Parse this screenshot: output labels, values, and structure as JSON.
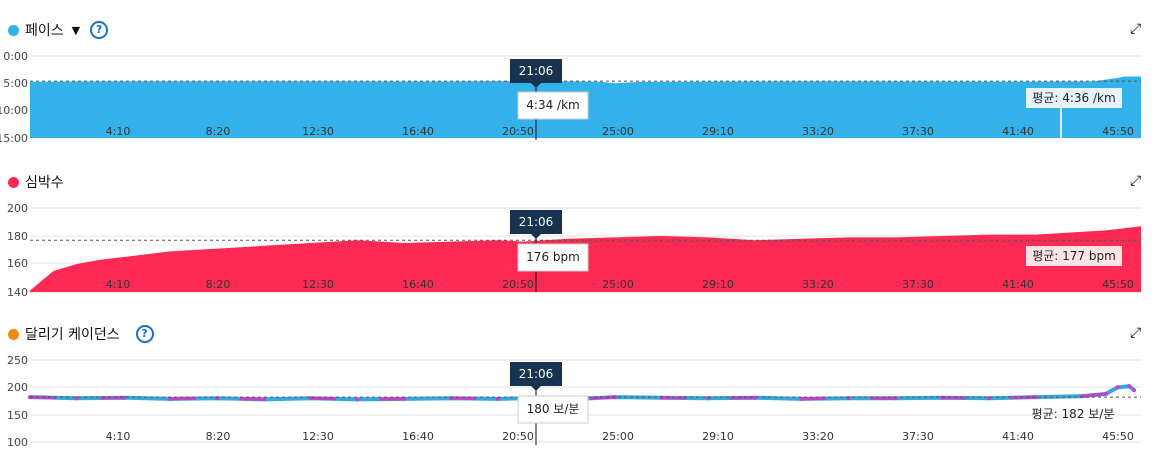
{
  "colors": {
    "pace": "#33b1ea",
    "hr": "#ff2a54",
    "cadence_blue": "#33a9e0",
    "cadence_pink": "#c540c4",
    "cadence_dot": "#ee8a16",
    "cursor_bg": "#17334f"
  },
  "cursor_time": "21:06",
  "x_ticks": [
    "4:10",
    "8:20",
    "12:30",
    "16:40",
    "20:50",
    "25:00",
    "29:10",
    "33:20",
    "37:30",
    "41:40",
    "45:50"
  ],
  "panels": {
    "pace": {
      "title": "페이스",
      "has_dropdown": true,
      "has_help": true,
      "cursor_value": "4:34 /km",
      "avg_label": "평균: 4:36 /km"
    },
    "hr": {
      "title": "심박수",
      "cursor_value": "176 bpm",
      "avg_label": "평균: 177 bpm"
    },
    "cadence": {
      "title": "달리기 케이던스",
      "has_help": true,
      "cursor_value": "180 보/분",
      "avg_label": "평균: 182 보/분"
    }
  },
  "chart_data": [
    {
      "type": "area",
      "name": "pace",
      "y_ticks": [
        "0:00",
        "5:00",
        "10:00",
        "15:00"
      ],
      "ylim_seconds": [
        0,
        900
      ],
      "y_inverted": true,
      "x_minutes_range": [
        0,
        47.5
      ],
      "avg_seconds": 276,
      "series": [
        {
          "name": "페이스",
          "x_min": [
            0,
            2,
            6,
            10,
            14,
            18,
            21.1,
            23,
            24.4,
            25,
            26,
            30,
            34,
            38,
            42,
            44,
            45.5,
            46.5,
            46.8,
            47.5
          ],
          "y_sec": [
            282,
            280,
            278,
            278,
            279,
            280,
            274,
            278,
            282,
            300,
            284,
            280,
            278,
            280,
            281,
            280,
            278,
            240,
            225,
            225
          ]
        }
      ]
    },
    {
      "type": "area",
      "name": "hr",
      "y_ticks": [
        "200",
        "180",
        "160",
        "140"
      ],
      "ylim": [
        140,
        200
      ],
      "x_minutes_range": [
        0,
        47.5
      ],
      "avg": 177,
      "series": [
        {
          "name": "심박수",
          "x_min": [
            0,
            0.5,
            1,
            2,
            3,
            4,
            6,
            8,
            10,
            12,
            14,
            16,
            18,
            20,
            21.1,
            23,
            25,
            27,
            29,
            31,
            33,
            35,
            37,
            39,
            41,
            43,
            45,
            46,
            47,
            47.5
          ],
          "y": [
            141,
            148,
            155,
            160,
            163,
            165,
            169,
            171,
            173,
            175,
            177,
            175,
            176,
            177,
            176,
            178,
            179,
            180,
            179,
            177,
            178,
            179,
            179,
            180,
            181,
            181,
            183,
            184,
            186,
            187
          ]
        }
      ]
    },
    {
      "type": "line",
      "name": "cadence",
      "y_ticks": [
        "250",
        "200",
        "150",
        "100"
      ],
      "ylim": [
        100,
        250
      ],
      "x_minutes_range": [
        0,
        47.5
      ],
      "avg": 182,
      "series": [
        {
          "name": "달리기 케이던스",
          "x_min": [
            0,
            2,
            4,
            6,
            8,
            10,
            12,
            14,
            16,
            18,
            20,
            21.1,
            23,
            25,
            27,
            29,
            31,
            33,
            35,
            37,
            39,
            41,
            43,
            45,
            46,
            46.5,
            47,
            47.2
          ],
          "y": [
            182,
            180,
            181,
            179,
            180,
            178,
            180,
            178,
            179,
            180,
            179,
            180,
            178,
            182,
            181,
            180,
            181,
            179,
            180,
            180,
            181,
            180,
            182,
            184,
            188,
            200,
            202,
            195
          ]
        }
      ]
    }
  ]
}
